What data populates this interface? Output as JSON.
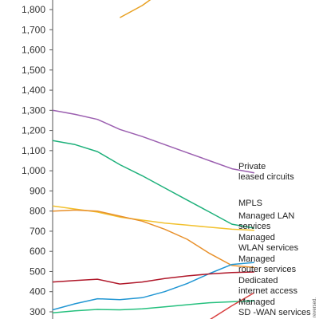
{
  "chart_data": {
    "type": "line",
    "title": "",
    "xlabel": "",
    "ylabel": "",
    "ylim": [
      260,
      1840
    ],
    "yticks": [
      300,
      400,
      500,
      600,
      700,
      800,
      900,
      1000,
      1100,
      1200,
      1300,
      1400,
      1500,
      1600,
      1700,
      1800
    ],
    "ytick_labels": [
      "300",
      "400",
      "500",
      "600",
      "700",
      "800",
      "900",
      "1,000",
      "1,100",
      "1,200",
      "1,300",
      "1,400",
      "1,500",
      "1,600",
      "1,700",
      "1,800"
    ],
    "grid": false,
    "legend": "direct labels at right end of lines",
    "x": [
      0,
      1,
      2,
      3,
      4,
      5,
      6,
      7,
      8,
      9
    ],
    "series": [
      {
        "name": "",
        "color": "#e8a020",
        "values": [
          null,
          null,
          null,
          1760,
          1820,
          1900,
          null,
          null,
          null,
          null
        ]
      },
      {
        "name": "Private leased circuits",
        "color": "#9b5fb0",
        "values": [
          1300,
          1280,
          1255,
          1205,
          1170,
          1130,
          1090,
          1050,
          1010,
          990
        ]
      },
      {
        "name": "MPLS",
        "color": "#1db07a",
        "values": [
          1150,
          1130,
          1095,
          1030,
          975,
          915,
          855,
          795,
          735,
          715
        ]
      },
      {
        "name": "Managed LAN services",
        "color": "#f2c12e",
        "values": [
          825,
          810,
          795,
          770,
          755,
          740,
          730,
          720,
          710,
          705
        ]
      },
      {
        "name": "Managed WLAN services",
        "color": "#e8902a",
        "values": [
          800,
          805,
          800,
          775,
          750,
          710,
          660,
          590,
          530,
          520
        ]
      },
      {
        "name": "Managed router services",
        "color": "#2196d3",
        "values": [
          310,
          340,
          365,
          360,
          370,
          400,
          440,
          490,
          535,
          545
        ]
      },
      {
        "name": "Dedicated internet access",
        "color": "#b0182a",
        "values": [
          448,
          455,
          462,
          438,
          448,
          465,
          478,
          488,
          495,
          498
        ]
      },
      {
        "name": "Managed SD -WAN services",
        "color": "#25c07e",
        "values": [
          295,
          305,
          312,
          310,
          315,
          325,
          335,
          345,
          350,
          355
        ]
      },
      {
        "name": "",
        "color": "#d94040",
        "values": [
          null,
          null,
          null,
          null,
          null,
          null,
          null,
          260,
          330,
          395
        ]
      }
    ],
    "labels": {
      "private": [
        "Private",
        "leased circuits"
      ],
      "mpls": [
        "MPLS"
      ],
      "lan": [
        "Managed LAN",
        "services"
      ],
      "wlan": [
        "Managed",
        "WLAN services"
      ],
      "router": [
        "Managed",
        "router services"
      ],
      "dia": [
        "Dedicated",
        "internet access"
      ],
      "sdwan": [
        "Managed",
        "SD -WAN services"
      ]
    },
    "side_note": "reversed."
  }
}
